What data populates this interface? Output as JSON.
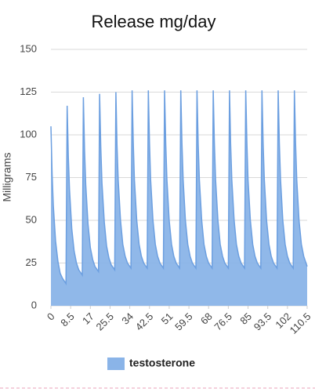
{
  "chart_data": {
    "type": "area",
    "title": "Release mg/day",
    "y_label": "Milligrams",
    "x": [
      0,
      0.5,
      1,
      2,
      3,
      4,
      5,
      6.5,
      7,
      7.5,
      8,
      9,
      10,
      11,
      12,
      13.5,
      14,
      14.5,
      15,
      16,
      17,
      18,
      19,
      20.5,
      21,
      21.5,
      22,
      23,
      24,
      25,
      26,
      27.5,
      28,
      28.5,
      29,
      30,
      31,
      32,
      33,
      34.5,
      35,
      35.5,
      36,
      37,
      38,
      39,
      40,
      41.5,
      42,
      42.5,
      43,
      44,
      45,
      46,
      47,
      48.5,
      49,
      49.5,
      50,
      51,
      52,
      53,
      54,
      55.5,
      56,
      56.5,
      57,
      58,
      59,
      60,
      61,
      62.5,
      63,
      63.5,
      64,
      65,
      66,
      67,
      68,
      69.5,
      70,
      70.5,
      71,
      72,
      73,
      74,
      75,
      76.5,
      77,
      77.5,
      78,
      79,
      80,
      81,
      82,
      83.5,
      84,
      84.5,
      85,
      86,
      87,
      88,
      89,
      90.5,
      91,
      91.5,
      92,
      93,
      94,
      95,
      96,
      97.5,
      98,
      98.5,
      99,
      100,
      101,
      102,
      103,
      104.5,
      105,
      105.5,
      106,
      107,
      108,
      109,
      110,
      110.5
    ],
    "series": [
      {
        "name": "testosterone",
        "color": "#8ab4e8",
        "values": [
          105,
          77,
          59,
          38,
          26,
          19,
          16,
          13,
          117,
          87,
          68,
          45,
          32,
          25,
          21,
          18,
          122,
          91,
          71,
          48,
          34,
          27,
          23,
          20,
          124,
          93,
          72,
          49,
          35,
          28,
          24,
          21,
          125,
          94,
          74,
          50,
          36,
          29,
          25,
          22,
          126,
          95,
          74,
          50,
          36,
          29,
          25,
          22,
          126,
          95,
          74,
          50,
          36,
          29,
          25,
          22,
          126,
          95,
          74,
          50,
          36,
          29,
          25,
          22,
          126,
          95,
          74,
          50,
          36,
          29,
          25,
          22,
          126,
          95,
          74,
          50,
          36,
          29,
          25,
          22,
          126,
          95,
          74,
          50,
          36,
          29,
          25,
          22,
          126,
          95,
          74,
          50,
          36,
          29,
          25,
          22,
          126,
          95,
          74,
          50,
          36,
          29,
          25,
          22,
          126,
          95,
          74,
          50,
          36,
          29,
          25,
          22,
          126,
          95,
          74,
          50,
          36,
          29,
          25,
          22,
          126,
          95,
          74,
          50,
          36,
          29,
          25,
          23
        ]
      }
    ],
    "xlim": [
      0,
      110.5
    ],
    "xticks": [
      0,
      8.5,
      17,
      25.5,
      34,
      42.5,
      51,
      59.5,
      68,
      76.5,
      85,
      93.5,
      102,
      110.5
    ],
    "ylim": [
      0,
      150
    ],
    "yticks": [
      0,
      25,
      50,
      75,
      100,
      125,
      150
    ],
    "grid": true,
    "legend_position": "bottom"
  }
}
